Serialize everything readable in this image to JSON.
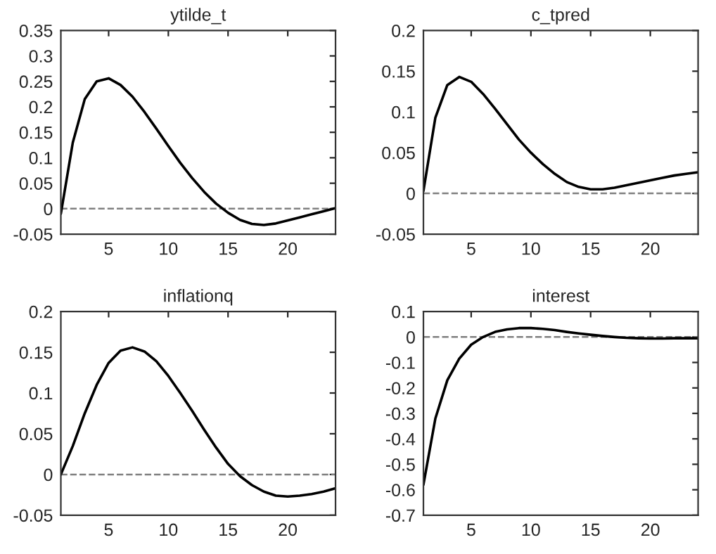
{
  "chart_data": [
    {
      "type": "line",
      "title": "ytilde_t",
      "x": [
        1,
        2,
        3,
        4,
        5,
        6,
        7,
        8,
        9,
        10,
        11,
        12,
        13,
        14,
        15,
        16,
        17,
        18,
        19,
        20,
        21,
        22,
        23,
        24
      ],
      "series": [
        {
          "color": "#000000",
          "values": [
            -0.01,
            0.13,
            0.215,
            0.25,
            0.256,
            0.243,
            0.22,
            0.19,
            0.157,
            0.123,
            0.09,
            0.06,
            0.033,
            0.01,
            -0.008,
            -0.022,
            -0.03,
            -0.032,
            -0.029,
            -0.023,
            -0.017,
            -0.011,
            -0.005,
            0.001
          ]
        }
      ],
      "xlim": [
        1,
        24
      ],
      "xticks": [
        5,
        10,
        15,
        20
      ],
      "ylim": [
        -0.05,
        0.35
      ],
      "yticks": [
        -0.05,
        0,
        0.05,
        0.1,
        0.15,
        0.2,
        0.25,
        0.3,
        0.35
      ],
      "ref_lines": [
        {
          "axis": "y",
          "value": 0,
          "color": "#808080",
          "line_style": "dashed"
        }
      ],
      "grid": false
    },
    {
      "type": "line",
      "title": "c_tpred",
      "x": [
        1,
        2,
        3,
        4,
        5,
        6,
        7,
        8,
        9,
        10,
        11,
        12,
        13,
        14,
        15,
        16,
        17,
        18,
        19,
        20,
        21,
        22,
        23,
        24
      ],
      "series": [
        {
          "color": "#000000",
          "values": [
            0.003,
            0.093,
            0.133,
            0.143,
            0.137,
            0.122,
            0.104,
            0.085,
            0.066,
            0.05,
            0.036,
            0.024,
            0.014,
            0.008,
            0.005,
            0.005,
            0.007,
            0.01,
            0.013,
            0.016,
            0.019,
            0.022,
            0.024,
            0.026
          ]
        }
      ],
      "xlim": [
        1,
        24
      ],
      "xticks": [
        5,
        10,
        15,
        20
      ],
      "ylim": [
        -0.05,
        0.2
      ],
      "yticks": [
        -0.05,
        0,
        0.05,
        0.1,
        0.15,
        0.2
      ],
      "ref_lines": [
        {
          "axis": "y",
          "value": 0,
          "color": "#808080",
          "line_style": "dashed"
        }
      ],
      "grid": false
    },
    {
      "type": "line",
      "title": "inflationq",
      "x": [
        1,
        2,
        3,
        4,
        5,
        6,
        7,
        8,
        9,
        10,
        11,
        12,
        13,
        14,
        15,
        16,
        17,
        18,
        19,
        20,
        21,
        22,
        23,
        24
      ],
      "series": [
        {
          "color": "#000000",
          "values": [
            0,
            0.035,
            0.075,
            0.11,
            0.137,
            0.152,
            0.156,
            0.151,
            0.139,
            0.121,
            0.1,
            0.078,
            0.055,
            0.033,
            0.013,
            -0.002,
            -0.013,
            -0.021,
            -0.026,
            -0.027,
            -0.026,
            -0.024,
            -0.021,
            -0.017
          ]
        }
      ],
      "xlim": [
        1,
        24
      ],
      "xticks": [
        5,
        10,
        15,
        20
      ],
      "ylim": [
        -0.05,
        0.2
      ],
      "yticks": [
        -0.05,
        0,
        0.05,
        0.1,
        0.15,
        0.2
      ],
      "ref_lines": [
        {
          "axis": "y",
          "value": 0,
          "color": "#808080",
          "line_style": "dashed"
        }
      ],
      "grid": false
    },
    {
      "type": "line",
      "title": "interest",
      "x": [
        1,
        2,
        3,
        4,
        5,
        6,
        7,
        8,
        9,
        10,
        11,
        12,
        13,
        14,
        15,
        16,
        17,
        18,
        19,
        20,
        21,
        22,
        23,
        24
      ],
      "series": [
        {
          "color": "#000000",
          "values": [
            -0.58,
            -0.32,
            -0.17,
            -0.085,
            -0.03,
            0.0,
            0.02,
            0.03,
            0.035,
            0.035,
            0.032,
            0.027,
            0.02,
            0.014,
            0.009,
            0.004,
            0.0,
            -0.003,
            -0.005,
            -0.006,
            -0.006,
            -0.005,
            -0.005,
            -0.005
          ]
        }
      ],
      "xlim": [
        1,
        24
      ],
      "xticks": [
        5,
        10,
        15,
        20
      ],
      "ylim": [
        -0.7,
        0.1
      ],
      "yticks": [
        -0.7,
        -0.6,
        -0.5,
        -0.4,
        -0.3,
        -0.2,
        -0.1,
        0,
        0.1
      ],
      "ref_lines": [
        {
          "axis": "y",
          "value": 0,
          "color": "#808080",
          "line_style": "dashed"
        }
      ],
      "grid": false
    }
  ]
}
